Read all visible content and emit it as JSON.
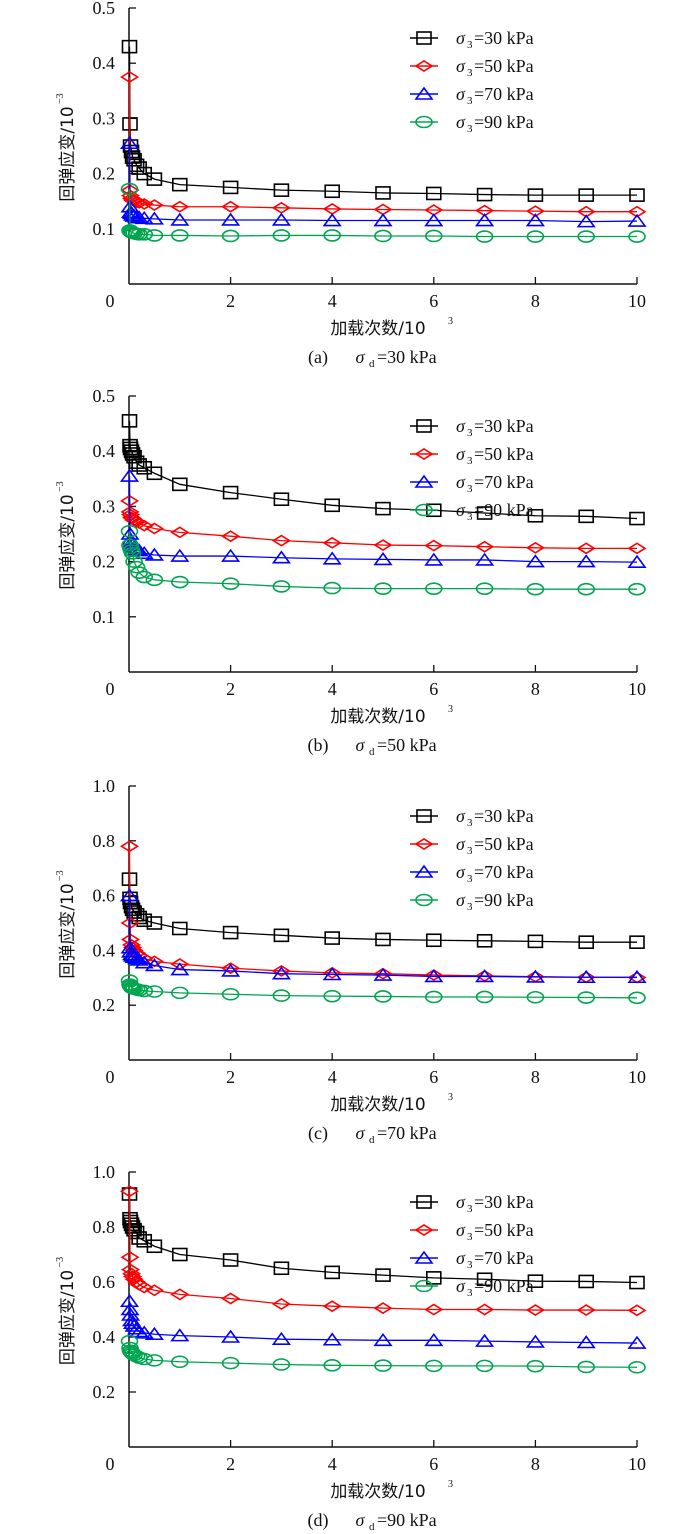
{
  "colors": {
    "s30": "#000000",
    "s50": "#ff0000",
    "s70": "#0000ff",
    "s90": "#00a550"
  },
  "chart_data": [
    {
      "type": "line",
      "panel": "(a)",
      "caption_prefix": "(a)",
      "caption_symbol": "σ",
      "caption_sub": "d",
      "caption_value": "=30 kPa",
      "xlabel": "加载次数/10",
      "xlabel_sup": "3",
      "ylabel": "回弹应变/10",
      "ylabel_sup": "−3",
      "xlim": [
        0,
        10
      ],
      "ylim": [
        0,
        0.5
      ],
      "xticks": [
        "0",
        "2",
        "4",
        "6",
        "8",
        "10"
      ],
      "xtick_values": [
        0,
        2,
        4,
        6,
        8,
        10
      ],
      "yticks": [
        "0.1",
        "0.2",
        "0.3",
        "0.4",
        "0.5"
      ],
      "ytick_values": [
        0.1,
        0.2,
        0.3,
        0.4,
        0.5
      ],
      "legend_position": "top-right",
      "x": [
        0.01,
        0.02,
        0.03,
        0.05,
        0.07,
        0.1,
        0.15,
        0.2,
        0.3,
        0.5,
        1,
        2,
        3,
        4,
        5,
        6,
        7,
        8,
        9,
        10
      ],
      "series": [
        {
          "name": "σ3=30 kPa",
          "sym": "σ",
          "sub": "3",
          "val": "=30 kPa",
          "color_key": "s30",
          "marker": "square",
          "values": [
            0.43,
            0.29,
            0.25,
            0.24,
            0.23,
            0.225,
            0.215,
            0.21,
            0.2,
            0.19,
            0.18,
            0.175,
            0.17,
            0.168,
            0.165,
            0.164,
            0.162,
            0.161,
            0.161,
            0.161
          ]
        },
        {
          "name": "σ3=50 kPa",
          "sym": "σ",
          "sub": "3",
          "val": "=50 kPa",
          "color_key": "s50",
          "marker": "diamond",
          "values": [
            0.375,
            0.17,
            0.16,
            0.155,
            0.152,
            0.15,
            0.148,
            0.147,
            0.145,
            0.143,
            0.14,
            0.14,
            0.138,
            0.136,
            0.135,
            0.134,
            0.133,
            0.132,
            0.131,
            0.131
          ]
        },
        {
          "name": "σ3=70 kPa",
          "sym": "σ",
          "sub": "3",
          "val": "=70 kPa",
          "color_key": "s70",
          "marker": "triangle",
          "values": [
            0.255,
            0.14,
            0.13,
            0.128,
            0.125,
            0.123,
            0.121,
            0.12,
            0.119,
            0.118,
            0.116,
            0.116,
            0.116,
            0.115,
            0.115,
            0.115,
            0.115,
            0.115,
            0.113,
            0.114
          ]
        },
        {
          "name": "σ3=90 kPa",
          "sym": "σ",
          "sub": "3",
          "val": "=90 kPa",
          "color_key": "s90",
          "marker": "circle",
          "values": [
            0.172,
            0.097,
            0.095,
            0.094,
            0.093,
            0.092,
            0.091,
            0.09,
            0.09,
            0.088,
            0.088,
            0.087,
            0.088,
            0.088,
            0.087,
            0.087,
            0.086,
            0.086,
            0.086,
            0.086
          ]
        }
      ]
    },
    {
      "type": "line",
      "panel": "(b)",
      "caption_prefix": "(b)",
      "caption_symbol": "σ",
      "caption_sub": "d",
      "caption_value": "=50 kPa",
      "xlabel": "加载次数/10",
      "xlabel_sup": "3",
      "ylabel": "回弹应变/10",
      "ylabel_sup": "−3",
      "xlim": [
        0,
        10
      ],
      "ylim": [
        0,
        0.5
      ],
      "xticks": [
        "0",
        "2",
        "4",
        "6",
        "8",
        "10"
      ],
      "xtick_values": [
        0,
        2,
        4,
        6,
        8,
        10
      ],
      "yticks": [
        "0.1",
        "0.2",
        "0.3",
        "0.4",
        "0.5"
      ],
      "ytick_values": [
        0.1,
        0.2,
        0.3,
        0.4,
        0.5
      ],
      "legend_position": "top-right",
      "x": [
        0.01,
        0.02,
        0.03,
        0.05,
        0.07,
        0.1,
        0.15,
        0.2,
        0.3,
        0.5,
        1,
        2,
        3,
        4,
        5,
        6,
        7,
        8,
        9,
        10
      ],
      "series": [
        {
          "name": "σ3=30 kPa",
          "sym": "σ",
          "sub": "3",
          "val": "=30 kPa",
          "color_key": "s30",
          "marker": "square",
          "values": [
            0.455,
            0.41,
            0.405,
            0.4,
            0.395,
            0.39,
            0.38,
            0.375,
            0.37,
            0.36,
            0.34,
            0.325,
            0.313,
            0.302,
            0.296,
            0.293,
            0.288,
            0.283,
            0.282,
            0.278
          ]
        },
        {
          "name": "σ3=50 kPa",
          "sym": "σ",
          "sub": "3",
          "val": "=50 kPa",
          "color_key": "s50",
          "marker": "diamond",
          "values": [
            0.31,
            0.29,
            0.285,
            0.28,
            0.278,
            0.275,
            0.272,
            0.27,
            0.265,
            0.26,
            0.253,
            0.246,
            0.238,
            0.234,
            0.23,
            0.229,
            0.227,
            0.225,
            0.224,
            0.224
          ]
        },
        {
          "name": "σ3=70 kPa",
          "sym": "σ",
          "sub": "3",
          "val": "=70 kPa",
          "color_key": "s70",
          "marker": "triangle",
          "values": [
            0.355,
            0.25,
            0.24,
            0.235,
            0.23,
            0.225,
            0.222,
            0.22,
            0.215,
            0.212,
            0.21,
            0.21,
            0.207,
            0.205,
            0.204,
            0.203,
            0.203,
            0.2,
            0.2,
            0.199
          ]
        },
        {
          "name": "σ3=90 kPa",
          "sym": "σ",
          "sub": "3",
          "val": "=90 kPa",
          "color_key": "s90",
          "marker": "circle",
          "values": [
            0.255,
            0.23,
            0.225,
            0.22,
            0.215,
            0.2,
            0.19,
            0.18,
            0.172,
            0.167,
            0.163,
            0.16,
            0.155,
            0.152,
            0.151,
            0.151,
            0.151,
            0.15,
            0.15,
            0.15
          ]
        }
      ]
    },
    {
      "type": "line",
      "panel": "(c)",
      "caption_prefix": "(c)",
      "caption_symbol": "σ",
      "caption_sub": "d",
      "caption_value": "=70 kPa",
      "xlabel": "加载次数/10",
      "xlabel_sup": "3",
      "ylabel": "回弹应变/10",
      "ylabel_sup": "−3",
      "xlim": [
        0,
        10
      ],
      "ylim": [
        0,
        1.0
      ],
      "xticks": [
        "0",
        "2",
        "4",
        "6",
        "8",
        "10"
      ],
      "xtick_values": [
        0,
        2,
        4,
        6,
        8,
        10
      ],
      "yticks": [
        "0.2",
        "0.4",
        "0.6",
        "0.8",
        "1.0"
      ],
      "ytick_values": [
        0.2,
        0.4,
        0.6,
        0.8,
        1.0
      ],
      "legend_position": "top-right",
      "x": [
        0.01,
        0.02,
        0.03,
        0.05,
        0.07,
        0.1,
        0.15,
        0.2,
        0.3,
        0.5,
        1,
        2,
        3,
        4,
        5,
        6,
        7,
        8,
        9,
        10
      ],
      "series": [
        {
          "name": "σ3=30 kPa",
          "sym": "σ",
          "sub": "3",
          "val": "=30 kPa",
          "color_key": "s30",
          "marker": "square",
          "values": [
            0.66,
            0.59,
            0.575,
            0.56,
            0.55,
            0.54,
            0.53,
            0.52,
            0.51,
            0.5,
            0.48,
            0.465,
            0.455,
            0.445,
            0.44,
            0.437,
            0.435,
            0.433,
            0.43,
            0.43
          ]
        },
        {
          "name": "σ3=50 kPa",
          "sym": "σ",
          "sub": "3",
          "val": "=50 kPa",
          "color_key": "s50",
          "marker": "diamond",
          "values": [
            0.78,
            0.5,
            0.44,
            0.42,
            0.41,
            0.4,
            0.39,
            0.38,
            0.37,
            0.36,
            0.35,
            0.335,
            0.325,
            0.318,
            0.315,
            0.31,
            0.307,
            0.304,
            0.302,
            0.301
          ]
        },
        {
          "name": "σ3=70 kPa",
          "sym": "σ",
          "sub": "3",
          "val": "=70 kPa",
          "color_key": "s70",
          "marker": "triangle",
          "values": [
            0.6,
            0.41,
            0.395,
            0.385,
            0.38,
            0.375,
            0.37,
            0.365,
            0.355,
            0.345,
            0.33,
            0.325,
            0.315,
            0.312,
            0.31,
            0.305,
            0.305,
            0.303,
            0.302,
            0.302
          ]
        },
        {
          "name": "σ3=90 kPa",
          "sym": "σ",
          "sub": "3",
          "val": "=90 kPa",
          "color_key": "s90",
          "marker": "circle",
          "values": [
            0.29,
            0.275,
            0.27,
            0.265,
            0.262,
            0.26,
            0.258,
            0.255,
            0.252,
            0.25,
            0.245,
            0.24,
            0.235,
            0.233,
            0.232,
            0.23,
            0.23,
            0.229,
            0.228,
            0.227
          ]
        }
      ]
    },
    {
      "type": "line",
      "panel": "(d)",
      "caption_prefix": "(d)",
      "caption_symbol": "σ",
      "caption_sub": "d",
      "caption_value": "=90 kPa",
      "xlabel": "加载次数/10",
      "xlabel_sup": "3",
      "ylabel": "回弹应变/10",
      "ylabel_sup": "−3",
      "xlim": [
        0,
        10
      ],
      "ylim": [
        0,
        1.0
      ],
      "xticks": [
        "0",
        "2",
        "4",
        "6",
        "8",
        "10"
      ],
      "xtick_values": [
        0,
        2,
        4,
        6,
        8,
        10
      ],
      "yticks": [
        "0.2",
        "0.4",
        "0.6",
        "0.8",
        "1.0"
      ],
      "ytick_values": [
        0.2,
        0.4,
        0.6,
        0.8,
        1.0
      ],
      "legend_position": "top-right",
      "x": [
        0.01,
        0.02,
        0.03,
        0.05,
        0.07,
        0.1,
        0.15,
        0.2,
        0.3,
        0.5,
        1,
        2,
        3,
        4,
        5,
        6,
        7,
        8,
        9,
        10
      ],
      "series": [
        {
          "name": "σ3=30 kPa",
          "sym": "σ",
          "sub": "3",
          "val": "=30 kPa",
          "color_key": "s30",
          "marker": "square",
          "values": [
            0.92,
            0.83,
            0.82,
            0.81,
            0.8,
            0.79,
            0.78,
            0.76,
            0.75,
            0.73,
            0.7,
            0.68,
            0.65,
            0.635,
            0.625,
            0.615,
            0.61,
            0.603,
            0.602,
            0.598
          ]
        },
        {
          "name": "σ3=50 kPa",
          "sym": "σ",
          "sub": "3",
          "val": "=50 kPa",
          "color_key": "s50",
          "marker": "diamond",
          "values": [
            0.93,
            0.69,
            0.645,
            0.63,
            0.62,
            0.61,
            0.6,
            0.59,
            0.58,
            0.57,
            0.555,
            0.54,
            0.52,
            0.512,
            0.505,
            0.5,
            0.5,
            0.498,
            0.498,
            0.497
          ]
        },
        {
          "name": "σ3=70 kPa",
          "sym": "σ",
          "sub": "3",
          "val": "=70 kPa",
          "color_key": "s70",
          "marker": "triangle",
          "values": [
            0.53,
            0.5,
            0.48,
            0.46,
            0.45,
            0.44,
            0.43,
            0.42,
            0.415,
            0.41,
            0.405,
            0.4,
            0.392,
            0.39,
            0.388,
            0.388,
            0.385,
            0.382,
            0.38,
            0.378
          ]
        },
        {
          "name": "σ3=90 kPa",
          "sym": "σ",
          "sub": "3",
          "val": "=90 kPa",
          "color_key": "s90",
          "marker": "circle",
          "values": [
            0.385,
            0.36,
            0.35,
            0.345,
            0.34,
            0.335,
            0.33,
            0.325,
            0.32,
            0.315,
            0.31,
            0.305,
            0.3,
            0.297,
            0.296,
            0.295,
            0.295,
            0.294,
            0.291,
            0.29
          ]
        }
      ]
    }
  ]
}
